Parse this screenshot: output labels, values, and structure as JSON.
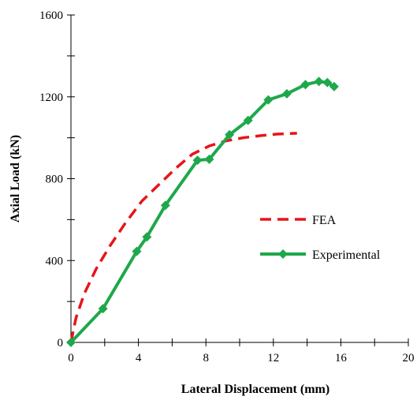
{
  "chart_data": {
    "type": "line",
    "xlabel": "Lateral Displacement (mm)",
    "ylabel": "Axial Load (kN)",
    "xlim": [
      0,
      20
    ],
    "ylim": [
      0,
      1600
    ],
    "xticks": [
      0,
      4,
      8,
      12,
      16,
      20
    ],
    "yticks": [
      0,
      400,
      800,
      1200,
      1600
    ],
    "grid": false,
    "legend_position": "right-center",
    "series": [
      {
        "name": "FEA",
        "style": "dashed",
        "color": "#e8141b",
        "x": [
          0,
          0.3,
          0.8,
          1.5,
          2.3,
          3.2,
          4.2,
          5.2,
          6.2,
          7.2,
          8.2,
          9.2,
          10.2,
          11.2,
          12.2,
          13.4
        ],
        "y": [
          0,
          120,
          240,
          360,
          470,
          580,
          690,
          770,
          850,
          920,
          960,
          985,
          1000,
          1010,
          1018,
          1022
        ]
      },
      {
        "name": "Experimental",
        "style": "solid",
        "marker": "diamond",
        "color": "#1ea84b",
        "x": [
          0,
          1.9,
          3.9,
          4.5,
          5.6,
          7.5,
          8.2,
          9.4,
          10.5,
          11.7,
          12.8,
          13.9,
          14.7,
          15.2,
          15.6
        ],
        "y": [
          0,
          165,
          445,
          515,
          670,
          890,
          895,
          1015,
          1085,
          1185,
          1215,
          1260,
          1275,
          1270,
          1250
        ]
      }
    ]
  }
}
